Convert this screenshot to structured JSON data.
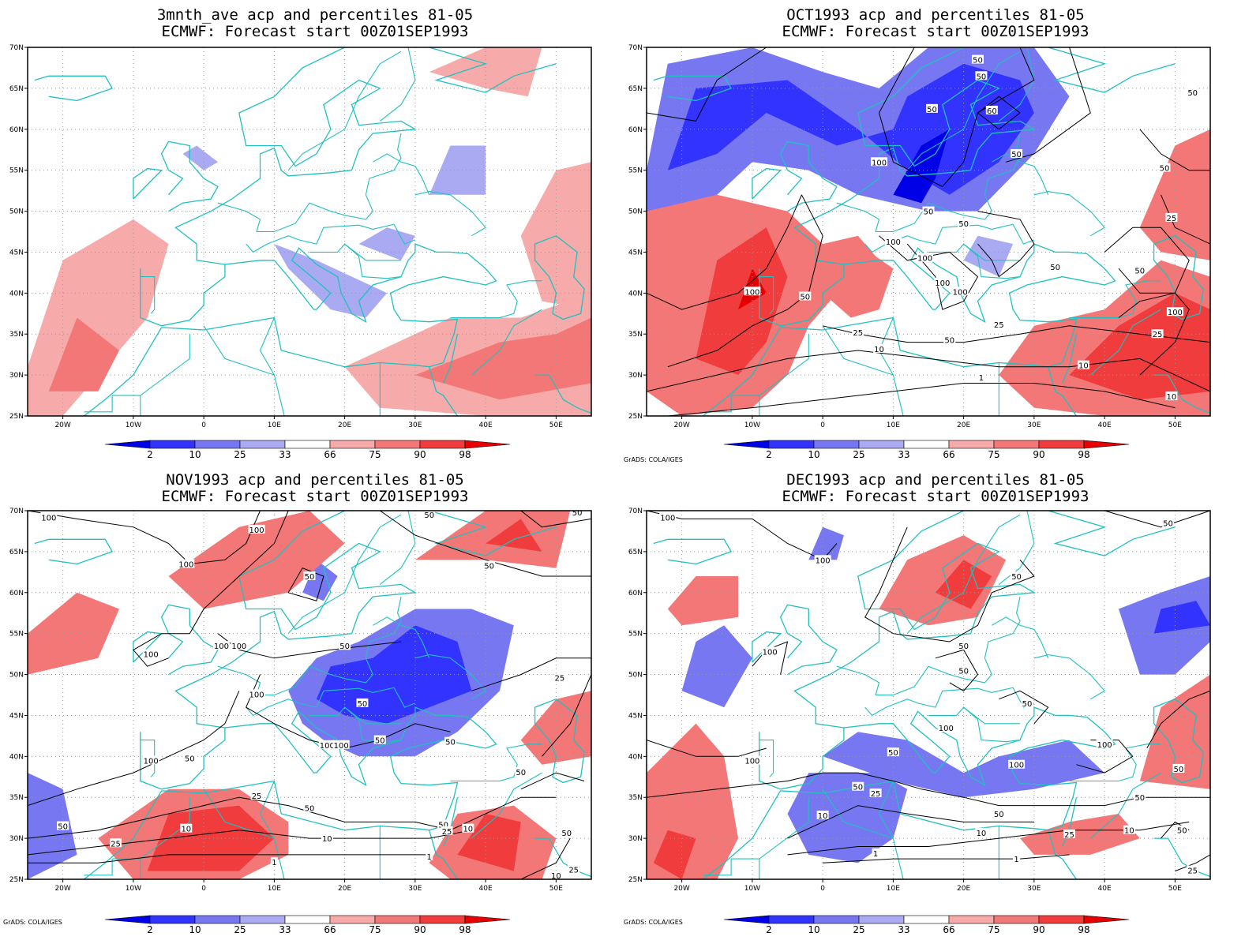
{
  "panels": [
    {
      "id": "3mnth",
      "title_line1": "3mnth_ave acp and percentiles 81-05",
      "title_line2": "ECMWF: Forecast start 00Z01SEP1993",
      "credit": "",
      "contour_labels": []
    },
    {
      "id": "oct",
      "title_line1": "OCT1993 acp and percentiles 81-05",
      "title_line2": "ECMWF: Forecast start 00Z01SEP1993",
      "credit": "GrADS: COLA/IGES",
      "contour_labels": [
        {
          "text": "50",
          "lon": 22,
          "lat": 68.5
        },
        {
          "text": "50",
          "lon": 22.5,
          "lat": 66.5
        },
        {
          "text": "50",
          "lon": 15.5,
          "lat": 62.5
        },
        {
          "text": "60",
          "lon": 24,
          "lat": 62.3
        },
        {
          "text": "50",
          "lon": 52.5,
          "lat": 64.5
        },
        {
          "text": "100",
          "lon": 8,
          "lat": 56
        },
        {
          "text": "50",
          "lon": 27.5,
          "lat": 57
        },
        {
          "text": "50",
          "lon": 48.5,
          "lat": 55.3
        },
        {
          "text": "50",
          "lon": 15,
          "lat": 50
        },
        {
          "text": "50",
          "lon": 20,
          "lat": 48.5
        },
        {
          "text": "25",
          "lon": 49.5,
          "lat": 49.2
        },
        {
          "text": "100",
          "lon": 10,
          "lat": 46.3
        },
        {
          "text": "100",
          "lon": 14.5,
          "lat": 44.3
        },
        {
          "text": "50",
          "lon": 33,
          "lat": 43.2
        },
        {
          "text": "50",
          "lon": 45,
          "lat": 42.8
        },
        {
          "text": "100",
          "lon": 17,
          "lat": 41.3
        },
        {
          "text": "100",
          "lon": -10,
          "lat": 40.2
        },
        {
          "text": "100",
          "lon": 19.5,
          "lat": 40.2
        },
        {
          "text": "50",
          "lon": -2.5,
          "lat": 39.6
        },
        {
          "text": "100",
          "lon": 50,
          "lat": 37.7
        },
        {
          "text": "25",
          "lon": 25,
          "lat": 36.2
        },
        {
          "text": "25",
          "lon": 5,
          "lat": 35.2
        },
        {
          "text": "25",
          "lon": 47.5,
          "lat": 35
        },
        {
          "text": "50",
          "lon": 18,
          "lat": 34.3
        },
        {
          "text": "10",
          "lon": 8,
          "lat": 33.2
        },
        {
          "text": "10",
          "lon": 37,
          "lat": 31.2
        },
        {
          "text": "1",
          "lon": 22.5,
          "lat": 29.7
        },
        {
          "text": "10",
          "lon": 49.5,
          "lat": 27.4
        }
      ]
    },
    {
      "id": "nov",
      "title_line1": "NOV1993 acp and percentiles 81-05",
      "title_line2": "ECMWF: Forecast start 00Z01SEP1993",
      "credit": "GrADS: COLA/IGES",
      "contour_labels": [
        {
          "text": "100",
          "lon": -22,
          "lat": 69.2
        },
        {
          "text": "50",
          "lon": 32,
          "lat": 69.5
        },
        {
          "text": "50",
          "lon": 53,
          "lat": 69.8
        },
        {
          "text": "100",
          "lon": 7.5,
          "lat": 67.7
        },
        {
          "text": "100",
          "lon": -2.5,
          "lat": 63.5
        },
        {
          "text": "50",
          "lon": 40.5,
          "lat": 63.3
        },
        {
          "text": "50",
          "lon": 15,
          "lat": 62
        },
        {
          "text": "100",
          "lon": -7.5,
          "lat": 52.5
        },
        {
          "text": "100",
          "lon": 2.5,
          "lat": 53.5
        },
        {
          "text": "100",
          "lon": 5,
          "lat": 53.5
        },
        {
          "text": "50",
          "lon": 20,
          "lat": 53.5
        },
        {
          "text": "25",
          "lon": 50.5,
          "lat": 49.6
        },
        {
          "text": "100",
          "lon": 7.5,
          "lat": 47.6
        },
        {
          "text": "50",
          "lon": 22.5,
          "lat": 46.5
        },
        {
          "text": "100",
          "lon": 17.5,
          "lat": 41.4
        },
        {
          "text": "100",
          "lon": 19.5,
          "lat": 41.4
        },
        {
          "text": "50",
          "lon": 25,
          "lat": 42
        },
        {
          "text": "50",
          "lon": 35,
          "lat": 41.8
        },
        {
          "text": "100",
          "lon": -7.5,
          "lat": 39.5
        },
        {
          "text": "50",
          "lon": -2,
          "lat": 39.8
        },
        {
          "text": "50",
          "lon": 45,
          "lat": 38.1
        },
        {
          "text": "25",
          "lon": 7.5,
          "lat": 35.2
        },
        {
          "text": "50",
          "lon": 15,
          "lat": 33.7
        },
        {
          "text": "50",
          "lon": 34,
          "lat": 31.7
        },
        {
          "text": "25",
          "lon": 34.5,
          "lat": 30.9
        },
        {
          "text": "10",
          "lon": 37.5,
          "lat": 31.2
        },
        {
          "text": "50",
          "lon": 51.5,
          "lat": 30.7
        },
        {
          "text": "10",
          "lon": -2.5,
          "lat": 31.2
        },
        {
          "text": "10",
          "lon": 17.5,
          "lat": 30
        },
        {
          "text": "50",
          "lon": -20,
          "lat": 31.5
        },
        {
          "text": "25",
          "lon": -12.5,
          "lat": 29.4
        },
        {
          "text": "1",
          "lon": 32,
          "lat": 27.8
        },
        {
          "text": "1",
          "lon": 10,
          "lat": 27.1
        },
        {
          "text": "10",
          "lon": 50,
          "lat": 25.5
        },
        {
          "text": "25",
          "lon": 52.5,
          "lat": 26.2
        }
      ]
    },
    {
      "id": "dec",
      "title_line1": "DEC1993 acp and percentiles 81-05",
      "title_line2": "ECMWF: Forecast start 00Z01SEP1993",
      "credit": "GrADS: COLA/IGES",
      "contour_labels": [
        {
          "text": "100",
          "lon": -22,
          "lat": 69.2
        },
        {
          "text": "50",
          "lon": 49,
          "lat": 68.5
        },
        {
          "text": "100",
          "lon": 0,
          "lat": 64
        },
        {
          "text": "50",
          "lon": 27.5,
          "lat": 62
        },
        {
          "text": "100",
          "lon": -7.5,
          "lat": 52.8
        },
        {
          "text": "50",
          "lon": 20,
          "lat": 53.5
        },
        {
          "text": "50",
          "lon": 20,
          "lat": 50.5
        },
        {
          "text": "50",
          "lon": 29,
          "lat": 46.5
        },
        {
          "text": "100",
          "lon": 17.5,
          "lat": 43.5
        },
        {
          "text": "100",
          "lon": 40,
          "lat": 41.5
        },
        {
          "text": "100",
          "lon": -10,
          "lat": 39.5
        },
        {
          "text": "50",
          "lon": 10,
          "lat": 40.5
        },
        {
          "text": "100",
          "lon": 27.5,
          "lat": 39
        },
        {
          "text": "50",
          "lon": 50.5,
          "lat": 38.5
        },
        {
          "text": "50",
          "lon": 5,
          "lat": 36.3
        },
        {
          "text": "25",
          "lon": 7.5,
          "lat": 35.5
        },
        {
          "text": "50",
          "lon": 45,
          "lat": 35
        },
        {
          "text": "10",
          "lon": 0,
          "lat": 32.8
        },
        {
          "text": "50",
          "lon": 25,
          "lat": 33
        },
        {
          "text": "50",
          "lon": 51,
          "lat": 31
        },
        {
          "text": "10",
          "lon": 22.5,
          "lat": 30.7
        },
        {
          "text": "25",
          "lon": 35,
          "lat": 30.5
        },
        {
          "text": "10",
          "lon": 43.5,
          "lat": 31
        },
        {
          "text": "1",
          "lon": 7.5,
          "lat": 28.2
        },
        {
          "text": "1",
          "lon": 27.5,
          "lat": 27.5
        },
        {
          "text": "25",
          "lon": 52.5,
          "lat": 26.1
        }
      ]
    }
  ],
  "map": {
    "lon_ticks": [
      "20W",
      "10W",
      "0",
      "10E",
      "20E",
      "30E",
      "40E",
      "50E"
    ],
    "lat_ticks": [
      "70N",
      "65N",
      "60N",
      "55N",
      "50N",
      "45N",
      "40N",
      "35N",
      "30N",
      "25N"
    ]
  },
  "colorbar": {
    "labels": [
      "2",
      "10",
      "25",
      "33",
      "66",
      "75",
      "90",
      "98"
    ],
    "colors": [
      "#0000e6",
      "#3333ff",
      "#7777f2",
      "#aaaaf2",
      "#ffffff",
      "#f7aaaa",
      "#f47777",
      "#f03c3c",
      "#e60000"
    ]
  }
}
